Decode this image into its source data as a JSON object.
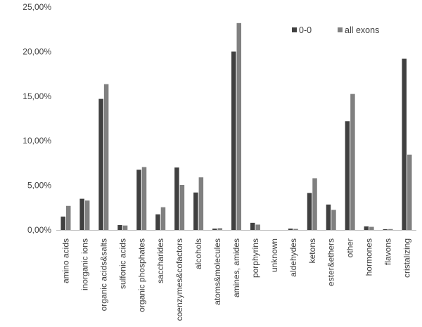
{
  "chart_data": {
    "type": "bar",
    "categories": [
      "amino acids",
      "inorganic ions",
      "organic acids&salts",
      "sulfonic acids",
      "organic phosphates",
      "saccharides",
      "coenzymes&cofactors",
      "alcohols",
      "atoms&molecules",
      "amines, amides",
      "porphyrins",
      "unknown",
      "aldehydes",
      "ketons",
      "ester&ethers",
      "other",
      "hormones",
      "flavons",
      "cristalizing"
    ],
    "series": [
      {
        "name": "0-0",
        "color": "#404040",
        "values": [
          1.5,
          3.5,
          14.7,
          0.55,
          6.75,
          1.75,
          7.0,
          4.2,
          0.15,
          20.0,
          0.8,
          0.0,
          0.15,
          4.15,
          2.85,
          12.2,
          0.4,
          0.08,
          19.2
        ]
      },
      {
        "name": "all exons",
        "color": "#808080",
        "values": [
          2.7,
          3.3,
          16.35,
          0.5,
          7.05,
          2.55,
          5.05,
          5.9,
          0.2,
          23.2,
          0.6,
          0.0,
          0.12,
          5.8,
          2.25,
          15.25,
          0.35,
          0.1,
          8.45
        ]
      }
    ],
    "y_ticks": [
      "0,00%",
      "5,00%",
      "10,00%",
      "15,00%",
      "20,00%",
      "25,00%"
    ],
    "ylim": [
      0,
      25
    ],
    "y_unit": "%",
    "grid": false,
    "legend_position": "top-right",
    "title": "",
    "xlabel": "",
    "ylabel": ""
  }
}
